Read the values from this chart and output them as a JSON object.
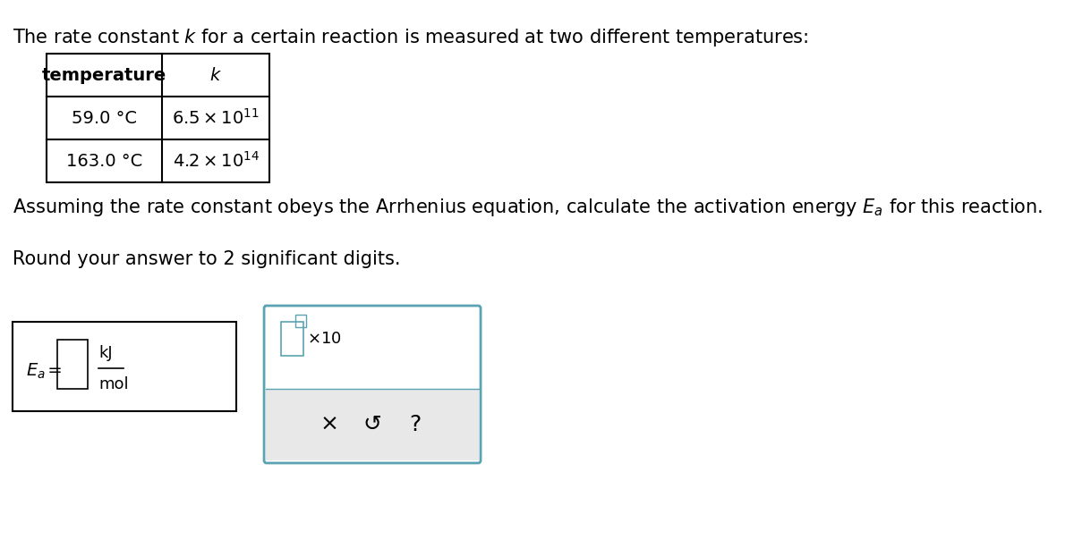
{
  "title_text": "The rate constant $k$ for a certain reaction is measured at two different temperatures:",
  "table_header": [
    "temperature",
    "$k$"
  ],
  "table_row1": [
    "59.0 °C",
    "$6.5 \\times 10^{11}$"
  ],
  "table_row2": [
    "163.0 °C",
    "$4.2 \\times 10^{14}$"
  ],
  "arrhenius_text": "Assuming the rate constant obeys the Arrhenius equation, calculate the activation energy $E_a$ for this reaction.",
  "round_text": "Round your answer to 2 significant digits.",
  "answer_label": "$E_a$ =",
  "answer_units_top": "kJ",
  "answer_units_bottom": "mol",
  "x10_label": "×10",
  "bg_color": "#ffffff",
  "text_color": "#000000",
  "table_border_color": "#000000",
  "box_border_color": "#000000",
  "input_box_color": "#ffffff",
  "second_box_bg": "#e8e8e8",
  "second_box_border": "#5ba3b0",
  "cross_color": "#000000",
  "refresh_color": "#000000",
  "question_color": "#000000"
}
